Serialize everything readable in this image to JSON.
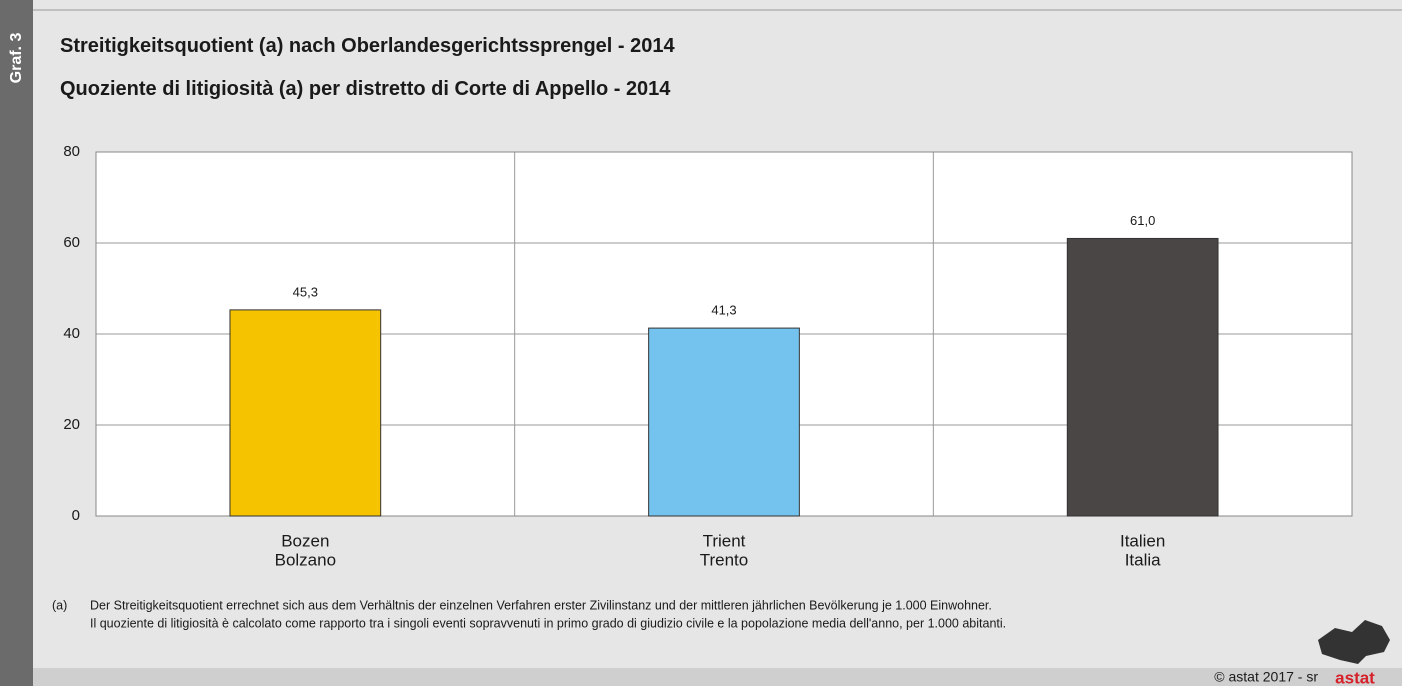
{
  "chart_data": {
    "type": "bar",
    "label": "Graf. 3",
    "title": "Streitigkeitsquotient (a) nach Oberlandesgerichtssprengel - 2014",
    "subtitle": "Quoziente di litigiosità (a) per distretto di Corte di Appello - 2014",
    "categories": [
      [
        "Bozen",
        "Bolzano"
      ],
      [
        "Trient",
        "Trento"
      ],
      [
        "Italien",
        "Italia"
      ]
    ],
    "values": [
      45.3,
      41.3,
      61.0
    ],
    "value_labels": [
      "45,3",
      "41,3",
      "61,0"
    ],
    "colors": [
      "#f5c300",
      "#74c3ef",
      "#4a4646"
    ],
    "ylim": [
      0,
      80
    ],
    "yticks": [
      0,
      20,
      40,
      60,
      80
    ],
    "grid": true,
    "footnote": {
      "marker": "(a)",
      "lines": [
        "Der Streitigkeitsquotient errechnet sich aus dem Verhältnis der einzelnen Verfahren erster Zivilinstanz und der mittleren jährlichen Bevölkerung je 1.000 Einwohner.",
        "Il quoziente di litigiosità è calcolato come rapporto tra i singoli eventi sopravvenuti in primo grado di giudizio civile e la popolazione media dell'anno, per 1.000 abitanti."
      ]
    },
    "credit": "©  astat 2017 - sr",
    "logo": "astat"
  }
}
